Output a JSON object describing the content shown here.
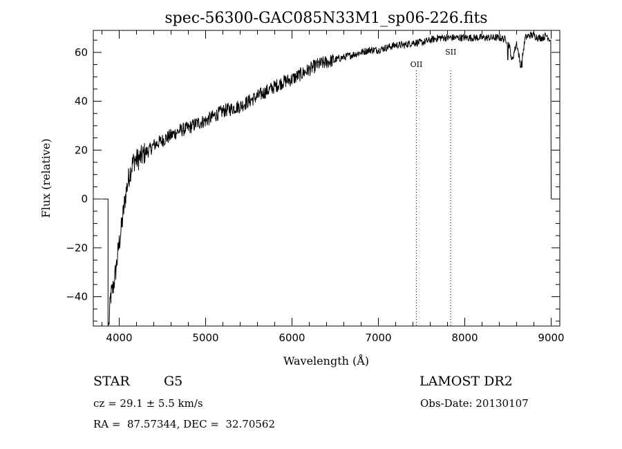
{
  "chart_data": {
    "type": "line",
    "title": "spec-56300-GAC085N33M1_sp06-226.fits",
    "xlabel": "Wavelength (Å)",
    "ylabel": "Flux (relative)",
    "xlim": [
      3700,
      9100
    ],
    "ylim": [
      -52,
      69
    ],
    "xticks": [
      4000,
      5000,
      6000,
      7000,
      8000,
      9000
    ],
    "yticks": [
      -40,
      -20,
      0,
      20,
      40,
      60
    ],
    "grid": false,
    "series": [
      {
        "x": [
          3800,
          3870,
          3880,
          3900,
          3925,
          3950,
          3975,
          4000,
          4025,
          4050,
          4075,
          4100,
          4125,
          4150,
          4175,
          4200,
          4250,
          4300,
          4350,
          4400,
          4450,
          4500,
          4550,
          4600,
          4700,
          4800,
          4900,
          5000,
          5100,
          5200,
          5300,
          5400,
          5500,
          5600,
          5700,
          5800,
          5900,
          6000,
          6100,
          6200,
          6300,
          6400,
          6500,
          6600,
          6700,
          6800,
          6900,
          7000,
          7100,
          7200,
          7300,
          7400,
          7500,
          7600,
          7700,
          7800,
          7900,
          8000,
          8100,
          8200,
          8300,
          8400,
          8500,
          8550,
          8600,
          8650,
          8700,
          8750,
          8800,
          8850,
          8900,
          8950,
          8990,
          9000
        ],
        "y": [
          0,
          0,
          -52,
          -40,
          -37,
          -32,
          -25,
          -18,
          -12,
          -5,
          2,
          7,
          11,
          14,
          16,
          16,
          17,
          19,
          20,
          22,
          23,
          24,
          25,
          26,
          28,
          29,
          31,
          32,
          34,
          36,
          37,
          38,
          40,
          42,
          44,
          46,
          48,
          49,
          51,
          53,
          55,
          56,
          57,
          58,
          59,
          60,
          61,
          61,
          62,
          63,
          63,
          64,
          64,
          65,
          66,
          66,
          66,
          66,
          66,
          66,
          66,
          66,
          65,
          57,
          64,
          54,
          66,
          67,
          67,
          66,
          66,
          67,
          65,
          0
        ],
        "noise": 2.2,
        "color": "#000000"
      }
    ],
    "absorption_dips": [
      {
        "x": 8498,
        "y": 57
      },
      {
        "x": 8542,
        "y": 57
      },
      {
        "x": 8662,
        "y": 54
      }
    ],
    "annotations": [
      {
        "label": "OII",
        "x": 7440
      },
      {
        "label": "SII",
        "x": 7838
      }
    ]
  },
  "footer": {
    "object_class": "STAR",
    "subclass": "G5",
    "survey": "LAMOST DR2",
    "cz": "cz = 29.1 ± 5.5 km/s",
    "obs_date": "Obs-Date: 20130107",
    "coords": "RA =  87.57344, DEC =  32.70562"
  }
}
